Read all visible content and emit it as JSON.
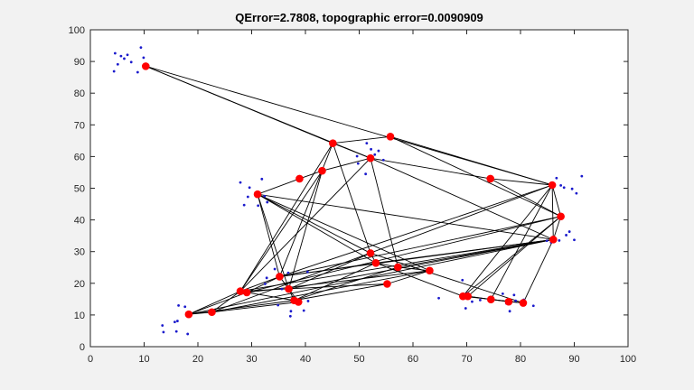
{
  "chart_data": {
    "type": "scatter",
    "title": "QError=2.7808, topographic error=0.0090909",
    "xlabel": "",
    "ylabel": "",
    "xlim": [
      0,
      100
    ],
    "ylim": [
      0,
      100
    ],
    "xticks": [
      "0",
      "10",
      "20",
      "30",
      "40",
      "50",
      "60",
      "70",
      "80",
      "90",
      "100"
    ],
    "yticks": [
      "0",
      "10",
      "20",
      "30",
      "40",
      "50",
      "60",
      "70",
      "80",
      "90",
      "100"
    ],
    "grid": false,
    "colors": {
      "data_points": "#1a1acc",
      "neurons": "#ff0000",
      "connections": "#000000",
      "plot_bg": "#ffffff",
      "figure_bg": "#f2f2f2"
    },
    "series": [
      {
        "values": [
          [
            4.6,
            92.6
          ],
          [
            5.1,
            89.1
          ],
          [
            5.7,
            91.7
          ],
          [
            6.3,
            90.9
          ],
          [
            6.9,
            92.1
          ],
          [
            7.6,
            89.8
          ],
          [
            4.4,
            86.9
          ],
          [
            9.4,
            94.4
          ],
          [
            9.9,
            91.2
          ],
          [
            8.8,
            86.6
          ],
          [
            49.6,
            60.1
          ],
          [
            51.4,
            64.2
          ],
          [
            52.9,
            60.6
          ],
          [
            49.8,
            57.8
          ],
          [
            51.2,
            54.5
          ],
          [
            53.6,
            61.8
          ],
          [
            54.5,
            58.9
          ],
          [
            52.2,
            62.3
          ],
          [
            86.7,
            53.2
          ],
          [
            88.1,
            50.2
          ],
          [
            89.6,
            49.8
          ],
          [
            90.4,
            48.4
          ],
          [
            91.4,
            53.8
          ],
          [
            87.5,
            50.9
          ],
          [
            27.9,
            51.8
          ],
          [
            29.6,
            50.2
          ],
          [
            31.9,
            52.9
          ],
          [
            29.3,
            47.3
          ],
          [
            31.2,
            44.5
          ],
          [
            32.9,
            45.6
          ],
          [
            28.6,
            44.7
          ],
          [
            32.4,
            47.5
          ],
          [
            34.3,
            24.5
          ],
          [
            36.8,
            23.3
          ],
          [
            40.4,
            23.6
          ],
          [
            32.5,
            19.8
          ],
          [
            35.6,
            18.2
          ],
          [
            38.2,
            15.1
          ],
          [
            40.5,
            14.4
          ],
          [
            34.9,
            13.1
          ],
          [
            37.3,
            11.2
          ],
          [
            39.7,
            11.4
          ],
          [
            37.2,
            9.6
          ],
          [
            32.8,
            21.7
          ],
          [
            16.4,
            13.0
          ],
          [
            17.6,
            12.6
          ],
          [
            15.7,
            7.8
          ],
          [
            18.1,
            4.0
          ],
          [
            13.4,
            6.7
          ],
          [
            16.0,
            4.8
          ],
          [
            13.6,
            4.6
          ],
          [
            16.2,
            8.1
          ],
          [
            69.2,
            21.0
          ],
          [
            70.1,
            16.8
          ],
          [
            71.0,
            14.2
          ],
          [
            69.8,
            12.1
          ],
          [
            72.5,
            14.7
          ],
          [
            74.8,
            15.3
          ],
          [
            77.4,
            13.6
          ],
          [
            79.1,
            14.5
          ],
          [
            78.8,
            16.3
          ],
          [
            76.7,
            16.7
          ],
          [
            82.4,
            12.9
          ],
          [
            80.6,
            14.8
          ],
          [
            64.8,
            15.3
          ],
          [
            78.0,
            11.2
          ],
          [
            88.5,
            35.2
          ],
          [
            89.1,
            36.3
          ],
          [
            90.0,
            33.7
          ],
          [
            87.2,
            33.5
          ],
          [
            84.9,
            33.4
          ],
          [
            85.7,
            32.9
          ],
          [
            87.6,
            41.5
          ]
        ]
      },
      {
        "values": [
          [
            10.3,
            88.5
          ],
          [
            55.8,
            66.3
          ],
          [
            45.1,
            64.2
          ],
          [
            52.1,
            59.5
          ],
          [
            43.1,
            55.5
          ],
          [
            38.9,
            53.0
          ],
          [
            74.4,
            53.0
          ],
          [
            85.9,
            51.0
          ],
          [
            31.1,
            48.1
          ],
          [
            87.5,
            41.1
          ],
          [
            86.1,
            33.8
          ],
          [
            52.1,
            29.5
          ],
          [
            53.1,
            26.4
          ],
          [
            57.2,
            25.1
          ],
          [
            63.1,
            24.0
          ],
          [
            55.2,
            19.8
          ],
          [
            35.2,
            22.1
          ],
          [
            36.9,
            18.2
          ],
          [
            27.9,
            17.5
          ],
          [
            29.1,
            17.1
          ],
          [
            37.9,
            14.6
          ],
          [
            38.7,
            14.1
          ],
          [
            22.6,
            10.9
          ],
          [
            18.3,
            10.2
          ],
          [
            69.3,
            15.9
          ],
          [
            70.2,
            15.9
          ],
          [
            74.5,
            14.9
          ],
          [
            77.8,
            14.2
          ],
          [
            80.5,
            13.8
          ]
        ]
      }
    ]
  }
}
